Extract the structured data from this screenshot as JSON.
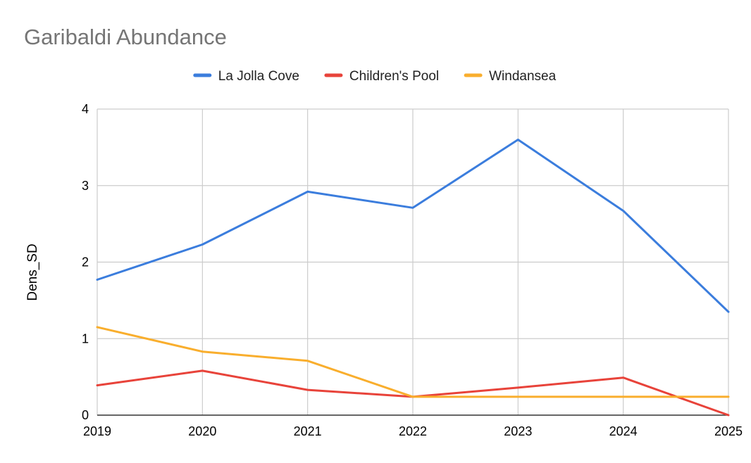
{
  "chart_data": {
    "type": "line",
    "title": "Garibaldi Abundance",
    "xlabel": "",
    "ylabel": "Dens_SD",
    "x": [
      "2019",
      "2020",
      "2021",
      "2022",
      "2023",
      "2024",
      "2025"
    ],
    "yticks": [
      "0",
      "1",
      "2",
      "3",
      "4"
    ],
    "ylim": [
      0,
      4
    ],
    "grid": true,
    "legend_position": "top",
    "series": [
      {
        "name": "La Jolla Cove",
        "color": "#3b7ddd",
        "values": [
          1.77,
          2.23,
          2.92,
          2.71,
          3.6,
          2.67,
          1.35
        ]
      },
      {
        "name": "Children's Pool",
        "color": "#e8433a",
        "values": [
          0.39,
          0.58,
          0.33,
          0.24,
          0.36,
          0.49,
          0.0
        ]
      },
      {
        "name": "Windansea",
        "color": "#f9ae2d",
        "values": [
          1.15,
          0.83,
          0.71,
          0.24,
          0.24,
          0.24,
          0.24
        ]
      }
    ]
  }
}
